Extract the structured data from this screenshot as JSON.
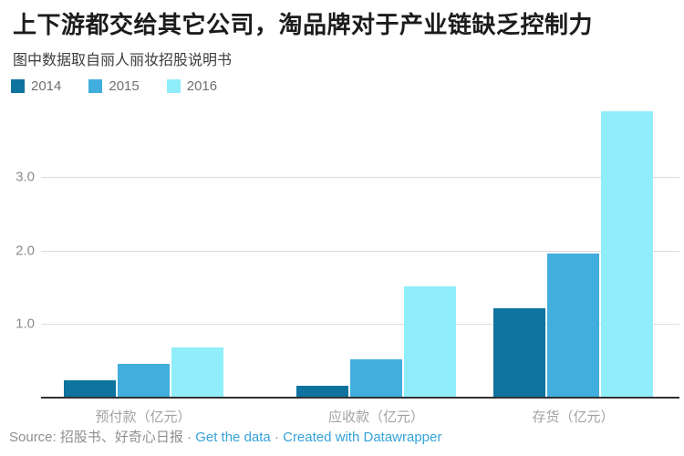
{
  "chart_data": {
    "type": "bar",
    "title": "上下游都交给其它公司，淘品牌对于产业链缺乏控制力",
    "subtitle": "图中数据取自丽人丽妆招股说明书",
    "categories": [
      "预付款（亿元）",
      "应收款（亿元）",
      "存货（亿元）"
    ],
    "series": [
      {
        "name": "2014",
        "color": "#0e739e",
        "values": [
          0.24,
          0.16,
          1.22
        ]
      },
      {
        "name": "2015",
        "color": "#41aede",
        "values": [
          0.46,
          0.52,
          1.96
        ]
      },
      {
        "name": "2016",
        "color": "#90eefa",
        "values": [
          0.68,
          1.51,
          3.89
        ]
      }
    ],
    "xlabel": "",
    "ylabel": "",
    "ylim": [
      0,
      4.04
    ],
    "yticks": [
      "1.0",
      "2.0",
      "3.0"
    ],
    "grid": true,
    "legend_position": "top-left"
  },
  "footer": {
    "prefix": "Source: 招股书、好奇心日报 ·",
    "link_get_data": "Get the data",
    "separator": "·",
    "link_created": "Created with Datawrapper"
  },
  "colors": {
    "link": "#35a3d8",
    "grid": "#dcdcdc",
    "axis": "#323232",
    "title_text": "#1c1c1c",
    "muted_text": "#a2a2a2"
  }
}
